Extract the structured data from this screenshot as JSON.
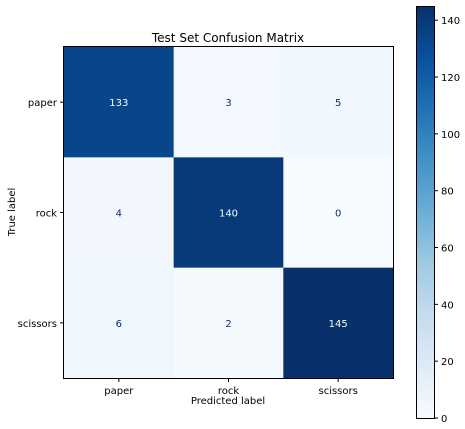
{
  "chart_data": {
    "type": "heatmap",
    "title": "Test Set Confusion Matrix",
    "xlabel": "Predicted label",
    "ylabel": "True label",
    "x_categories": [
      "paper",
      "rock",
      "scissors"
    ],
    "y_categories": [
      "paper",
      "rock",
      "scissors"
    ],
    "values": [
      [
        133,
        3,
        5
      ],
      [
        4,
        140,
        0
      ],
      [
        6,
        2,
        145
      ]
    ],
    "colormap": "Blues",
    "color_range": [
      0,
      145
    ],
    "colorbar_ticks": [
      0,
      20,
      40,
      60,
      80,
      100,
      120,
      140
    ],
    "colors": {
      "low": "#f7fbff",
      "high": "#08306b",
      "text_dark_cell": "#f7fbff",
      "text_light_cell": "#08306b"
    }
  }
}
